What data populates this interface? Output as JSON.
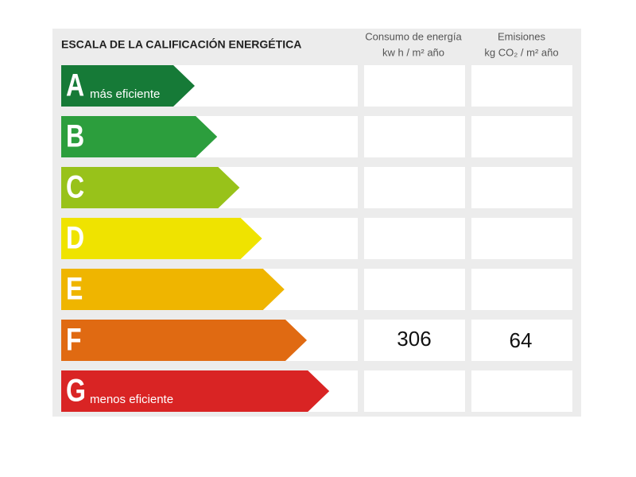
{
  "header": {
    "title": "ESCALA DE LA CALIFICACIÓN ENERGÉTICA",
    "columns": [
      {
        "line1": "Consumo de energía",
        "line2": "kw h / m² año"
      },
      {
        "line1": "Emisiones",
        "line2": "kg CO₂ / m² año"
      }
    ]
  },
  "rows": [
    {
      "letter": "A",
      "label": "más eficiente",
      "color": "#167a37"
    },
    {
      "letter": "B",
      "color": "#2c9e3d"
    },
    {
      "letter": "C",
      "color": "#98c21a"
    },
    {
      "letter": "D",
      "color": "#efe300"
    },
    {
      "letter": "E",
      "color": "#efb500"
    },
    {
      "letter": "F",
      "color": "#e06a12",
      "consumption": 306,
      "emissions": 64
    },
    {
      "letter": "G",
      "label": "menos eficiente",
      "color": "#d92424"
    }
  ]
}
